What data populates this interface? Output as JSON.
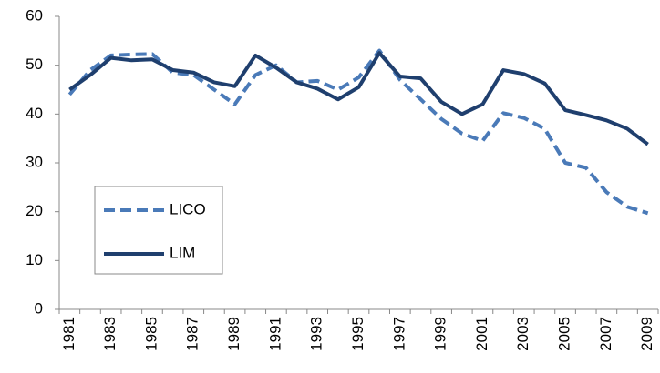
{
  "chart_data": {
    "type": "line",
    "categories": [
      1981,
      null,
      1983,
      null,
      1985,
      null,
      1987,
      null,
      1989,
      null,
      1991,
      null,
      1993,
      null,
      1995,
      null,
      1997,
      null,
      1999,
      null,
      2001,
      null,
      2003,
      null,
      2005,
      null,
      2007,
      null,
      2009
    ],
    "series": [
      {
        "name": "LICO",
        "color": "#4a7ab8",
        "dashed": true,
        "values": [
          44,
          49,
          52,
          52.2,
          52.3,
          48.5,
          48,
          45,
          42,
          48,
          50,
          46.5,
          46.8,
          45,
          47.5,
          53,
          47,
          43,
          39,
          36,
          34.5,
          40.2,
          39.2,
          37,
          30,
          29,
          24,
          21,
          19.7
        ]
      },
      {
        "name": "LIM",
        "color": "#1f3f6e",
        "dashed": false,
        "values": [
          45,
          48,
          51.5,
          51,
          51.2,
          49,
          48.5,
          46.5,
          45.7,
          52,
          49.5,
          46.5,
          45.2,
          43,
          45.5,
          52.5,
          47.7,
          47.3,
          42.5,
          40,
          42,
          49,
          48.2,
          46.3,
          40.8,
          39.8,
          38.7,
          37,
          33.8
        ]
      }
    ],
    "ylim": [
      0,
      60
    ],
    "yticks": [
      0,
      10,
      20,
      30,
      40,
      50,
      60
    ],
    "grid": false,
    "legend": "lower left"
  }
}
